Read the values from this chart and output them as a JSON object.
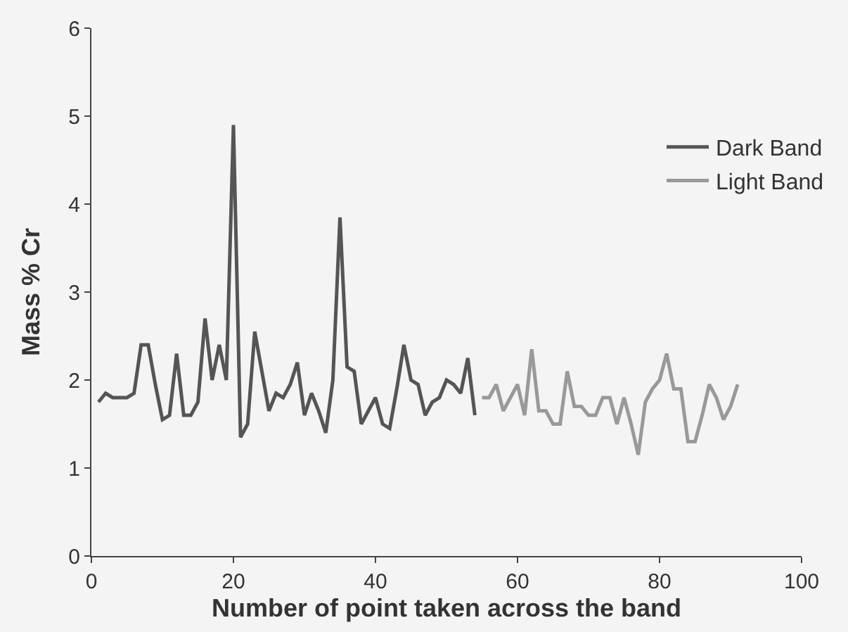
{
  "chart_data": {
    "type": "line",
    "xlabel": "Number of point taken across the band",
    "ylabel": "Mass % Cr",
    "xlim": [
      0,
      100
    ],
    "xticks": [
      0,
      20,
      40,
      60,
      80,
      100
    ],
    "ylim": [
      0,
      6
    ],
    "yticks": [
      0,
      1,
      2,
      3,
      4,
      5,
      6
    ],
    "grid": false,
    "legend": "right",
    "marker": "none",
    "line_style": "solid",
    "series": [
      {
        "name": "Dark Band",
        "color": "#555555",
        "x": [
          1,
          2,
          3,
          4,
          5,
          6,
          7,
          8,
          9,
          10,
          11,
          12,
          13,
          14,
          15,
          16,
          17,
          18,
          19,
          20,
          21,
          22,
          23,
          24,
          25,
          26,
          27,
          28,
          29,
          30,
          31,
          32,
          33,
          34,
          35,
          36,
          37,
          38,
          39,
          40,
          41,
          42,
          43,
          44,
          45,
          46,
          47,
          48,
          49,
          50,
          51,
          52,
          53,
          54
        ],
        "values": [
          1.75,
          1.85,
          1.8,
          1.8,
          1.8,
          1.85,
          2.4,
          2.4,
          1.95,
          1.55,
          1.6,
          2.3,
          1.6,
          1.6,
          1.75,
          2.7,
          2.0,
          2.4,
          2.0,
          4.9,
          1.35,
          1.5,
          2.55,
          2.1,
          1.65,
          1.85,
          1.8,
          1.95,
          2.2,
          1.6,
          1.85,
          1.65,
          1.4,
          2.0,
          3.85,
          2.15,
          2.1,
          1.5,
          1.65,
          1.8,
          1.5,
          1.45,
          1.9,
          2.4,
          2.0,
          1.95,
          1.6,
          1.75,
          1.8,
          2.0,
          1.95,
          1.85,
          2.25,
          1.6
        ]
      },
      {
        "name": "Light Band",
        "color": "#999999",
        "x": [
          55,
          56,
          57,
          58,
          59,
          60,
          61,
          62,
          63,
          64,
          65,
          66,
          67,
          68,
          69,
          70,
          71,
          72,
          73,
          74,
          75,
          76,
          77,
          78,
          79,
          80,
          81,
          82,
          83,
          84,
          85,
          86,
          87,
          88,
          89,
          90,
          91
        ],
        "values": [
          1.8,
          1.8,
          1.95,
          1.65,
          1.8,
          1.95,
          1.6,
          2.35,
          1.65,
          1.65,
          1.5,
          1.5,
          2.1,
          1.7,
          1.7,
          1.6,
          1.6,
          1.8,
          1.8,
          1.5,
          1.8,
          1.5,
          1.15,
          1.75,
          1.9,
          2.0,
          2.3,
          1.9,
          1.9,
          1.3,
          1.3,
          1.6,
          1.95,
          1.8,
          1.55,
          1.7,
          1.95
        ]
      }
    ]
  }
}
